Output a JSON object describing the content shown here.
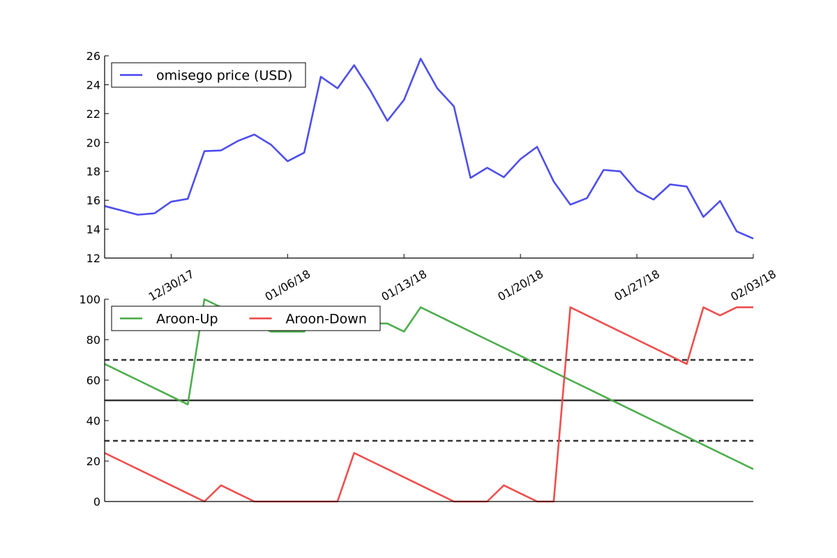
{
  "chart_data": [
    {
      "type": "line",
      "title": "",
      "xlabel": "",
      "ylabel": "",
      "x": [
        "12/26/17",
        "12/27/17",
        "12/28/17",
        "12/29/17",
        "12/30/17",
        "12/31/17",
        "01/01/18",
        "01/02/18",
        "01/03/18",
        "01/04/18",
        "01/05/18",
        "01/06/18",
        "01/07/18",
        "01/08/18",
        "01/09/18",
        "01/10/18",
        "01/11/18",
        "01/12/18",
        "01/13/18",
        "01/14/18",
        "01/15/18",
        "01/16/18",
        "01/17/18",
        "01/18/18",
        "01/19/18",
        "01/20/18",
        "01/21/18",
        "01/22/18",
        "01/23/18",
        "01/24/18",
        "01/25/18",
        "01/26/18",
        "01/27/18",
        "01/28/18",
        "01/29/18",
        "01/30/18",
        "01/31/18",
        "02/01/18",
        "02/02/18",
        "02/03/18"
      ],
      "series": [
        {
          "name": "omisego price (USD)",
          "color": "#4444ee",
          "values": [
            15.6,
            15.3,
            15.0,
            15.1,
            15.9,
            16.1,
            19.4,
            19.45,
            20.1,
            20.55,
            19.85,
            18.7,
            19.3,
            24.55,
            23.75,
            25.35,
            23.55,
            21.5,
            22.95,
            25.8,
            23.75,
            22.5,
            17.55,
            18.25,
            17.6,
            18.85,
            19.7,
            17.3,
            15.7,
            16.15,
            18.1,
            18.0,
            16.65,
            16.05,
            17.1,
            16.95,
            14.85,
            15.95,
            13.85,
            13.35
          ]
        }
      ],
      "ylim": [
        12,
        26
      ],
      "yticks": [
        12,
        14,
        16,
        18,
        20,
        22,
        24,
        26
      ],
      "xticks": [
        "12/30/17",
        "01/06/18",
        "01/13/18",
        "01/20/18",
        "01/27/18",
        "02/03/18"
      ],
      "grid": false,
      "legend_position": "top-left"
    },
    {
      "type": "line",
      "title": "",
      "xlabel": "",
      "ylabel": "",
      "x": [
        "12/26/17",
        "12/27/17",
        "12/28/17",
        "12/29/17",
        "12/30/17",
        "12/31/17",
        "01/01/18",
        "01/02/18",
        "01/03/18",
        "01/04/18",
        "01/05/18",
        "01/06/18",
        "01/07/18",
        "01/08/18",
        "01/09/18",
        "01/10/18",
        "01/11/18",
        "01/12/18",
        "01/13/18",
        "01/14/18",
        "01/15/18",
        "01/16/18",
        "01/17/18",
        "01/18/18",
        "01/19/18",
        "01/20/18",
        "01/21/18",
        "01/22/18",
        "01/23/18",
        "01/24/18",
        "01/25/18",
        "01/26/18",
        "01/27/18",
        "01/28/18",
        "01/29/18",
        "01/30/18",
        "01/31/18",
        "02/01/18",
        "02/02/18",
        "02/03/18"
      ],
      "series": [
        {
          "name": "Aroon-Up",
          "color": "#44aa44",
          "values": [
            68,
            64,
            60,
            56,
            52,
            48,
            100,
            96,
            92,
            88,
            84,
            84,
            84,
            96,
            92,
            88,
            88,
            88,
            84,
            96,
            92,
            88,
            84,
            80,
            76,
            72,
            68,
            64,
            60,
            56,
            52,
            48,
            44,
            40,
            36,
            32,
            28,
            24,
            20,
            16
          ]
        },
        {
          "name": "Aroon-Down",
          "color": "#ee4444",
          "values": [
            24,
            20,
            16,
            12,
            8,
            4,
            0,
            8,
            4,
            0,
            0,
            0,
            0,
            0,
            0,
            24,
            20,
            16,
            12,
            8,
            4,
            0,
            0,
            0,
            8,
            4,
            0,
            0,
            96,
            92,
            88,
            84,
            80,
            76,
            72,
            68,
            96,
            92,
            96,
            96
          ]
        }
      ],
      "reference_lines": [
        {
          "value": 70,
          "style": "dashed",
          "color": "#333333"
        },
        {
          "value": 50,
          "style": "solid",
          "color": "#333333"
        },
        {
          "value": 30,
          "style": "dashed",
          "color": "#333333"
        }
      ],
      "ylim": [
        0,
        100
      ],
      "yticks": [
        0,
        20,
        40,
        60,
        80,
        100
      ],
      "grid": false,
      "legend_position": "top-left"
    }
  ]
}
